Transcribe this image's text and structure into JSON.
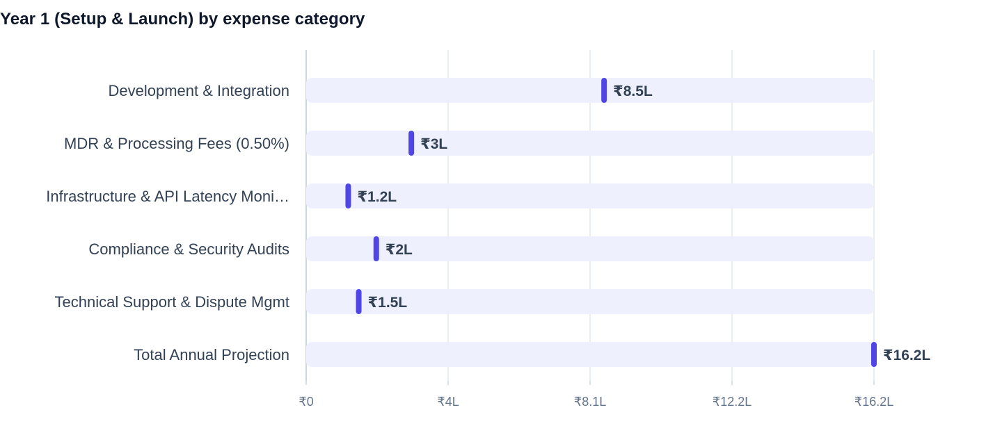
{
  "chart_data": {
    "type": "bar",
    "title": "Year 1 (Setup & Launch) by expense category",
    "xlabel": "",
    "ylabel": "",
    "categories": [
      "Development & Integration",
      "MDR & Processing Fees (0.50%)",
      "Infrastructure & API Latency Moni…",
      "Compliance & Security Audits",
      "Technical Support & Dispute Mgmt",
      "Total Annual Projection"
    ],
    "values": [
      850000,
      300000,
      120000,
      200000,
      150000,
      1620000
    ],
    "value_labels": [
      "₹8.5L",
      "₹3L",
      "₹1.2L",
      "₹2L",
      "₹1.5L",
      "₹16.2L"
    ],
    "xlim": [
      0,
      1620000
    ],
    "x_ticks": [
      0,
      405000,
      810000,
      1215000,
      1620000
    ],
    "x_tick_labels": [
      "₹0",
      "₹4L",
      "₹8.1L",
      "₹12.2L",
      "₹16.2L"
    ],
    "grid": true,
    "orientation": "horizontal",
    "colors": {
      "marker": "#4f46e5",
      "track": "#eef1fd",
      "grid": "#e2e8f0",
      "axis": "#cbd5e1",
      "title": "#0f172a",
      "label": "#334155",
      "tick": "#64748b"
    }
  }
}
